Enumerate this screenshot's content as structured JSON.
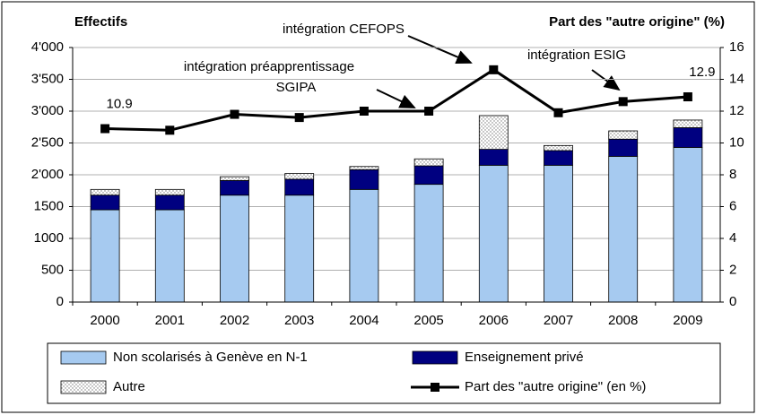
{
  "chart_data": {
    "type": "bar",
    "y_title": "Effectifs",
    "y2_title": "Part des \"autre origine\" (%)",
    "categories": [
      "2000",
      "2001",
      "2002",
      "2003",
      "2004",
      "2005",
      "2006",
      "2007",
      "2008",
      "2009"
    ],
    "series": [
      {
        "name": "Non scolarisés à Genève en N-1",
        "color": "#a6caf0",
        "values": [
          1450,
          1450,
          1680,
          1680,
          1770,
          1850,
          2150,
          2150,
          2290,
          2430
        ]
      },
      {
        "name": "Enseignement privé",
        "color": "#000080",
        "values": [
          230,
          230,
          230,
          250,
          310,
          290,
          250,
          230,
          270,
          310
        ]
      },
      {
        "name": "Autre",
        "color": "#ffffff",
        "pattern": "dots",
        "values": [
          90,
          90,
          60,
          90,
          50,
          110,
          530,
          80,
          130,
          120
        ]
      },
      {
        "name": "Part des \"autre origine\" (en %)",
        "type": "line",
        "axis": "y2",
        "color": "#000000",
        "values": [
          10.9,
          10.8,
          11.8,
          11.6,
          12.0,
          12.0,
          14.6,
          11.9,
          12.6,
          12.9
        ]
      }
    ],
    "ylim": [
      0,
      4000
    ],
    "yticks": [
      0,
      500,
      1000,
      1500,
      {
        "value": 2000,
        "label": "2'000"
      },
      {
        "value": 2500,
        "label": "2'500"
      },
      {
        "value": 3000,
        "label": "3'000"
      },
      {
        "value": 3500,
        "label": "3'500"
      },
      {
        "value": 4000,
        "label": "4'000"
      }
    ],
    "y2lim": [
      0,
      16
    ],
    "y2ticks": [
      0,
      2,
      4,
      6,
      8,
      10,
      12,
      14,
      16
    ],
    "grid": true,
    "annotations": [
      {
        "lines": [
          "intégration CEFOPS"
        ]
      },
      {
        "lines": [
          "intégration préapprentissage",
          "SGIPA"
        ]
      },
      {
        "lines": [
          "intégration ESIG"
        ]
      }
    ]
  }
}
